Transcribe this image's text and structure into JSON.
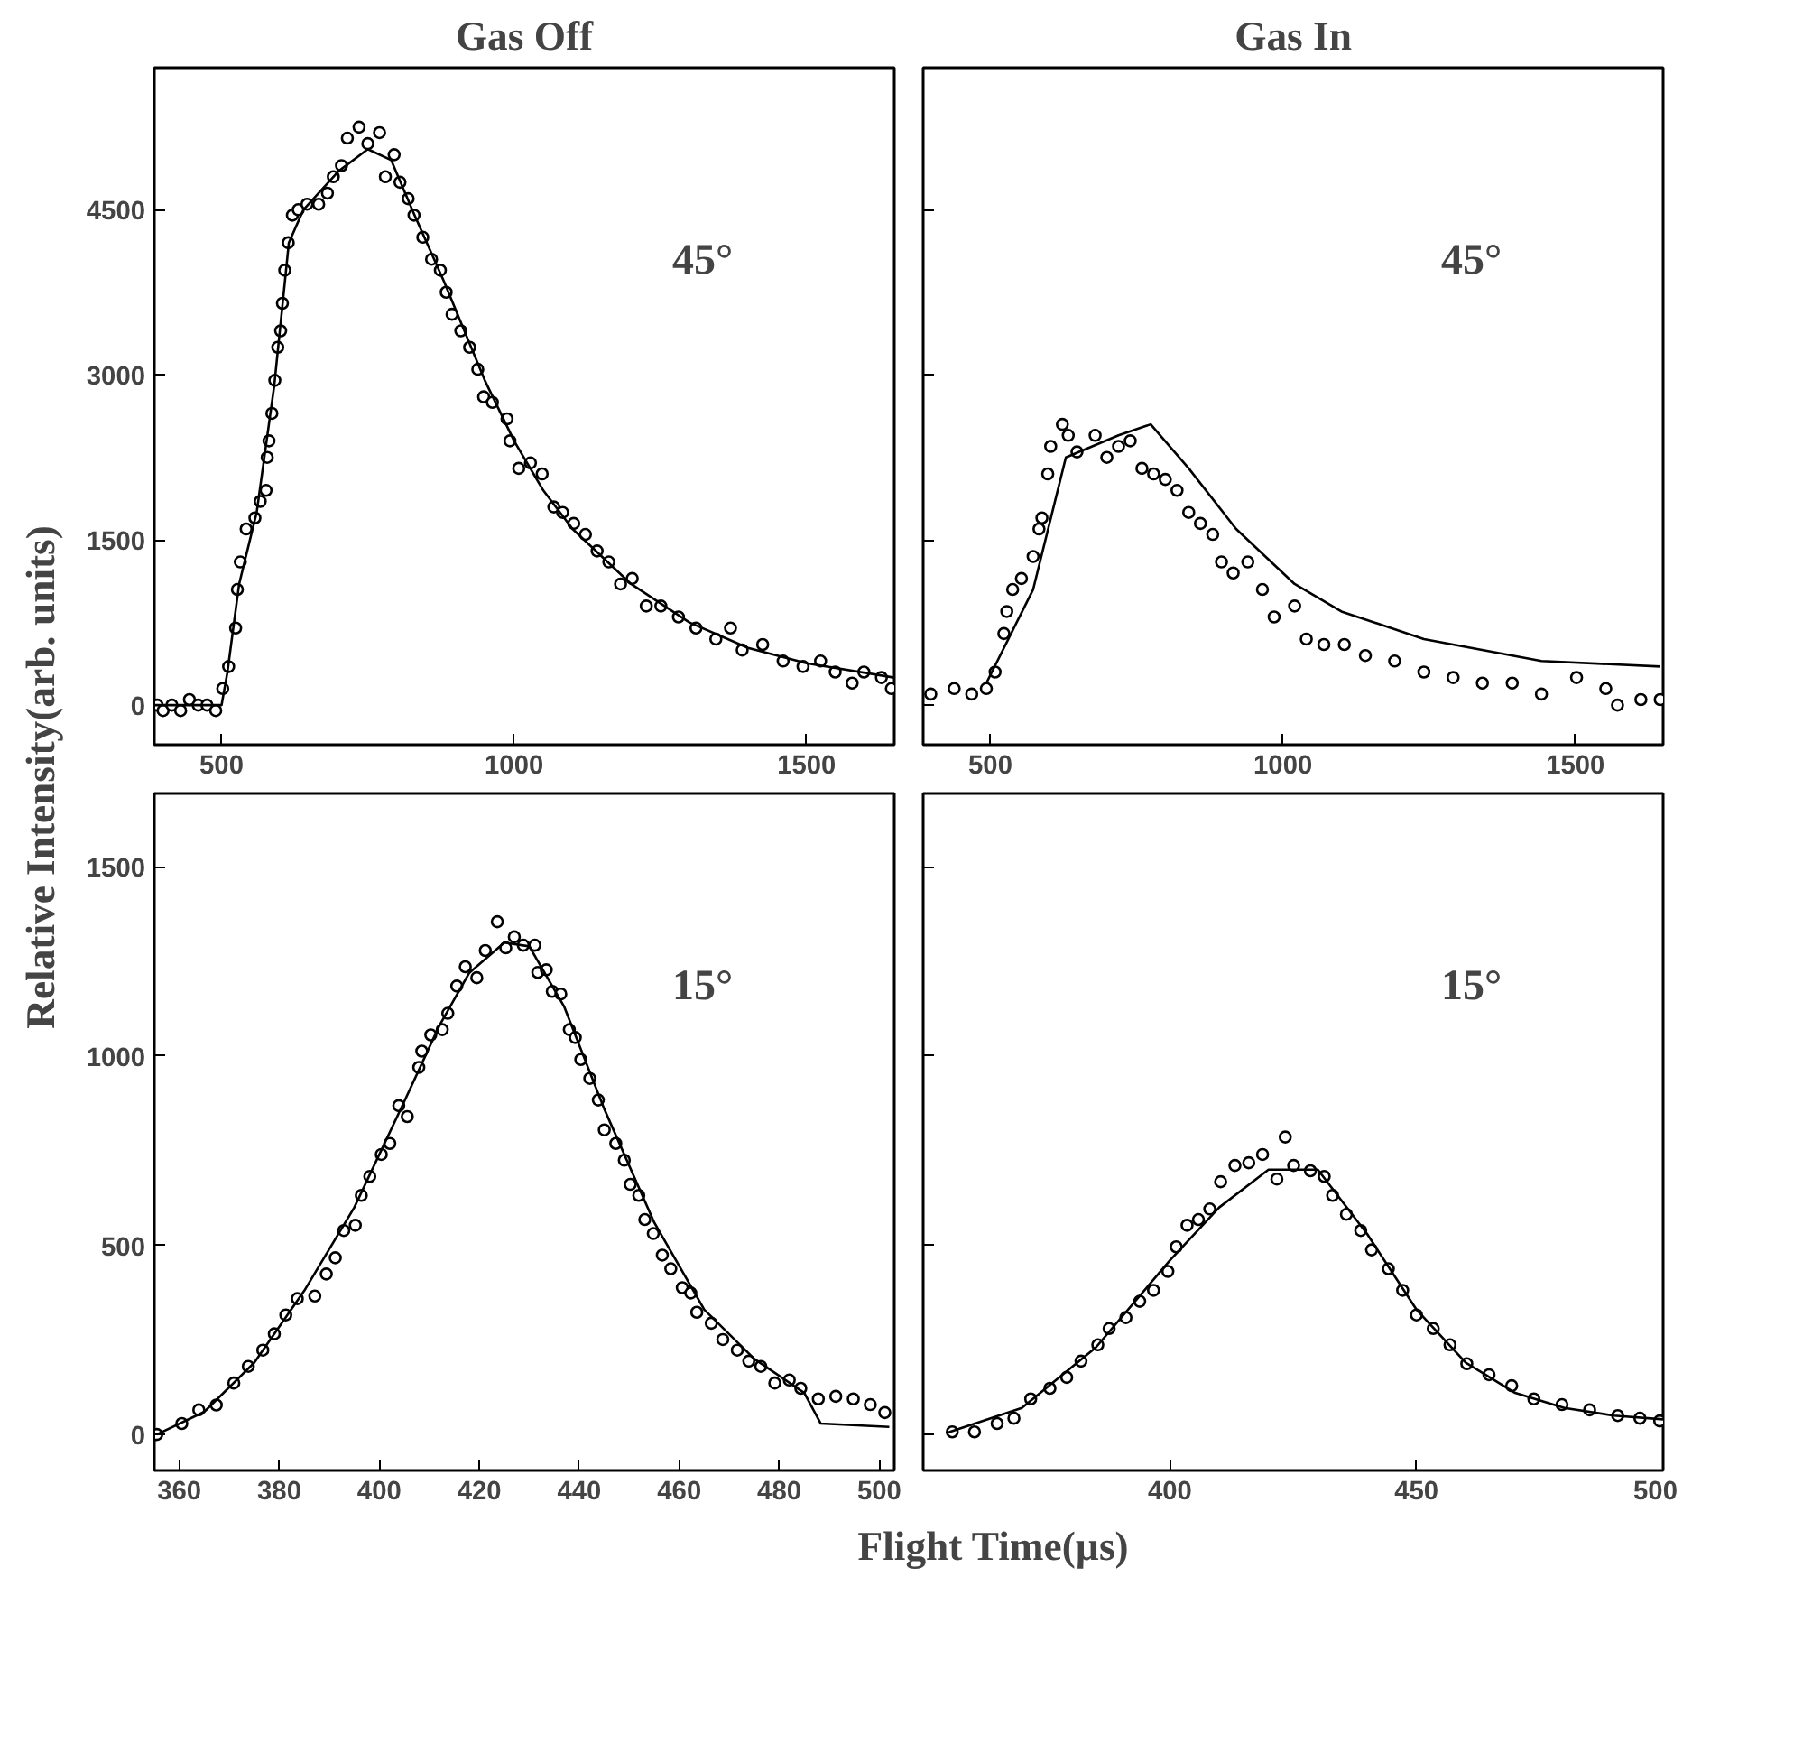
{
  "chart_data": [
    {
      "type": "scatter",
      "title": "Gas Off",
      "ylabel": "Relative Intensity(arb. units)",
      "xlim": [
        385,
        1650
      ],
      "ylim": [
        -360,
        5790
      ],
      "xticks": [
        500,
        1000,
        1500
      ],
      "yticks": [
        0,
        1500,
        3000,
        4500
      ],
      "grid": false,
      "annotations": [
        "45°"
      ],
      "series": [
        {
          "marker": "circle",
          "color": "#000000",
          "x": [
            390,
            400,
            415,
            430,
            445,
            460,
            475,
            490,
            502,
            512,
            524,
            527,
            532,
            542,
            557,
            566,
            576,
            578,
            581,
            586,
            591,
            596,
            601,
            604,
            608,
            614,
            621,
            631,
            646,
            666,
            681,
            691,
            705,
            715,
            735,
            750,
            770,
            780,
            795,
            805,
            819,
            829,
            844,
            859,
            874,
            884,
            894,
            909,
            924,
            938,
            948,
            963,
            988,
            993,
            1008,
            1028,
            1048,
            1068,
            1083,
            1102,
            1122,
            1142,
            1162,
            1182,
            1202,
            1226,
            1251,
            1281,
            1311,
            1345,
            1370,
            1390,
            1425,
            1460,
            1494,
            1524,
            1549,
            1578,
            1598,
            1628,
            1645
          ],
          "values": [
            0,
            -50,
            0,
            -50,
            50,
            0,
            0,
            -50,
            150,
            350,
            700,
            1050,
            1300,
            1600,
            1700,
            1850,
            1950,
            2250,
            2400,
            2650,
            2950,
            3250,
            3400,
            3650,
            3950,
            4200,
            4450,
            4500,
            4550,
            4550,
            4650,
            4800,
            4900,
            5150,
            5250,
            5100,
            5200,
            4800,
            5000,
            4750,
            4600,
            4450,
            4250,
            4050,
            3950,
            3750,
            3550,
            3400,
            3250,
            3050,
            2800,
            2750,
            2600,
            2400,
            2150,
            2200,
            2100,
            1800,
            1750,
            1650,
            1550,
            1400,
            1300,
            1100,
            1150,
            900,
            900,
            800,
            700,
            600,
            700,
            500,
            550,
            400,
            350,
            400,
            300,
            200,
            300,
            250,
            150
          ]
        },
        {
          "type": "line",
          "line_style": "solid",
          "color": "#000000",
          "x": [
            385,
            500,
            510,
            530,
            560,
            590,
            615,
            640,
            700,
            750,
            790,
            830,
            880,
            950,
            1000,
            1050,
            1100,
            1200,
            1300,
            1400,
            1500,
            1650
          ],
          "values": [
            0,
            0,
            300,
            1100,
            1750,
            2900,
            4200,
            4500,
            4850,
            5050,
            4950,
            4450,
            3850,
            2950,
            2400,
            1950,
            1600,
            1100,
            750,
            520,
            380,
            250
          ]
        }
      ]
    },
    {
      "type": "scatter",
      "title": "Gas In",
      "xlim": [
        385,
        1650
      ],
      "ylim": [
        -360,
        5790
      ],
      "xticks": [
        500,
        1000,
        1500
      ],
      "yticks": [
        0,
        1500,
        3000,
        4500
      ],
      "tick_labels": "x",
      "grid": false,
      "annotations": [
        "45°"
      ],
      "series": [
        {
          "marker": "circle",
          "color": "#000000",
          "x": [
            398,
            438,
            468,
            493,
            508,
            523,
            528,
            538,
            553,
            573,
            583,
            588,
            598,
            603,
            623,
            633,
            648,
            679,
            699,
            719,
            739,
            759,
            779,
            799,
            819,
            839,
            859,
            880,
            895,
            915,
            940,
            965,
            985,
            1020,
            1040,
            1070,
            1105,
            1141,
            1191,
            1241,
            1291,
            1341,
            1392,
            1442,
            1502,
            1552,
            1572,
            1612,
            1645
          ],
          "values": [
            100,
            150,
            100,
            150,
            300,
            650,
            850,
            1050,
            1150,
            1350,
            1600,
            1700,
            2100,
            2350,
            2550,
            2450,
            2300,
            2450,
            2250,
            2350,
            2400,
            2150,
            2100,
            2050,
            1950,
            1750,
            1650,
            1550,
            1300,
            1200,
            1300,
            1050,
            800,
            900,
            600,
            550,
            550,
            450,
            400,
            300,
            250,
            200,
            200,
            100,
            250,
            150,
            0,
            50,
            50
          ]
        },
        {
          "type": "line",
          "line_style": "solid",
          "color": "#000000",
          "x": [
            493,
            573,
            629,
            719,
            774,
            839,
            920,
            1020,
            1100,
            1241,
            1442,
            1645
          ],
          "values": [
            200,
            1050,
            2250,
            2450,
            2550,
            2150,
            1600,
            1100,
            850,
            600,
            400,
            350
          ]
        }
      ]
    },
    {
      "type": "scatter",
      "xlabel": "Flight Time(µs)",
      "xlim": [
        355,
        503
      ],
      "ylim": [
        -95,
        1694
      ],
      "xticks": [
        360,
        380,
        400,
        420,
        440,
        460,
        480,
        500
      ],
      "yticks": [
        0,
        500,
        1000,
        1500
      ],
      "grid": false,
      "annotations": [
        "15°"
      ],
      "series": [
        {
          "marker": "circle",
          "color": "#000000",
          "x": [
            355.5,
            360.5,
            363.9,
            367.4,
            370.9,
            373.8,
            376.7,
            379.0,
            381.3,
            383.6,
            387.1,
            389.4,
            391.2,
            392.9,
            395.2,
            396.4,
            398.1,
            400.4,
            402.1,
            403.9,
            405.6,
            407.9,
            408.5,
            410.3,
            412.6,
            413.7,
            415.5,
            417.2,
            419.5,
            421.2,
            423.6,
            425.3,
            427.0,
            428.8,
            431.1,
            431.7,
            433.4,
            434.6,
            436.3,
            438.0,
            439.2,
            440.3,
            442.1,
            443.8,
            445.0,
            447.3,
            449.0,
            450.2,
            451.9,
            453.1,
            454.8,
            456.6,
            458.3,
            460.6,
            462.3,
            463.5,
            466.4,
            468.7,
            471.6,
            473.9,
            476.3,
            479.1,
            482.0,
            484.3,
            487.8,
            491.3,
            494.8,
            498.2,
            501.1
          ],
          "values": [
            0,
            29,
            65,
            78,
            136,
            180,
            223,
            266,
            316,
            359,
            366,
            424,
            467,
            539,
            553,
            632,
            682,
            740,
            769,
            869,
            840,
            970,
            1013,
            1056,
            1070,
            1113,
            1185,
            1236,
            1207,
            1279,
            1355,
            1286,
            1315,
            1293,
            1293,
            1221,
            1228,
            1171,
            1164,
            1070,
            1049,
            991,
            941,
            884,
            805,
            769,
            725,
            661,
            632,
            568,
            531,
            474,
            438,
            388,
            374,
            323,
            294,
            251,
            223,
            194,
            180,
            136,
            144,
            122,
            94,
            101,
            94,
            79,
            58
          ]
        },
        {
          "type": "line",
          "line_style": "solid",
          "color": "#000000",
          "x": [
            355.5,
            365,
            375,
            385,
            395,
            405,
            412,
            418,
            425,
            430,
            437,
            445,
            455,
            465,
            475,
            485,
            488.3,
            502
          ],
          "values": [
            0,
            60,
            190,
            380,
            600,
            880,
            1080,
            1220,
            1300,
            1290,
            1130,
            860,
            560,
            330,
            200,
            110,
            29,
            20
          ]
        }
      ]
    },
    {
      "type": "scatter",
      "xlim": [
        350,
        500
      ],
      "ylim": [
        -95,
        1694
      ],
      "xticks": [
        400,
        450,
        500
      ],
      "yticks": [
        0,
        500,
        1000,
        1500
      ],
      "tick_labels": "x",
      "grid": false,
      "annotations": [
        "15°"
      ],
      "series": [
        {
          "marker": "circle",
          "color": "#000000",
          "x": [
            355.9,
            360.4,
            365.0,
            368.4,
            371.8,
            375.7,
            379.1,
            382.0,
            385.4,
            387.7,
            391.1,
            393.9,
            396.7,
            399.6,
            401.3,
            403.5,
            405.8,
            408.1,
            410.3,
            413.2,
            416.0,
            418.8,
            421.7,
            423.4,
            425.1,
            428.5,
            431.3,
            433.0,
            435.8,
            438.7,
            440.9,
            444.3,
            447.2,
            450.0,
            453.4,
            456.8,
            460.2,
            464.7,
            469.3,
            473.8,
            479.5,
            485.1,
            490.8,
            495.3,
            499.3
          ],
          "values": [
            7,
            7,
            29,
            43,
            94,
            122,
            151,
            194,
            237,
            280,
            309,
            352,
            381,
            431,
            496,
            553,
            568,
            596,
            668,
            711,
            718,
            740,
            675,
            786,
            711,
            697,
            682,
            632,
            582,
            539,
            488,
            438,
            381,
            316,
            280,
            237,
            187,
            158,
            129,
            94,
            79,
            65,
            50,
            43,
            36
          ]
        },
        {
          "type": "line",
          "line_style": "solid",
          "color": "#000000",
          "x": [
            355,
            370,
            385,
            400,
            410,
            420,
            430,
            440,
            450,
            460,
            470,
            480,
            490,
            500
          ],
          "values": [
            5,
            70,
            230,
            460,
            600,
            700,
            700,
            530,
            330,
            190,
            110,
            70,
            50,
            40
          ]
        }
      ]
    }
  ]
}
